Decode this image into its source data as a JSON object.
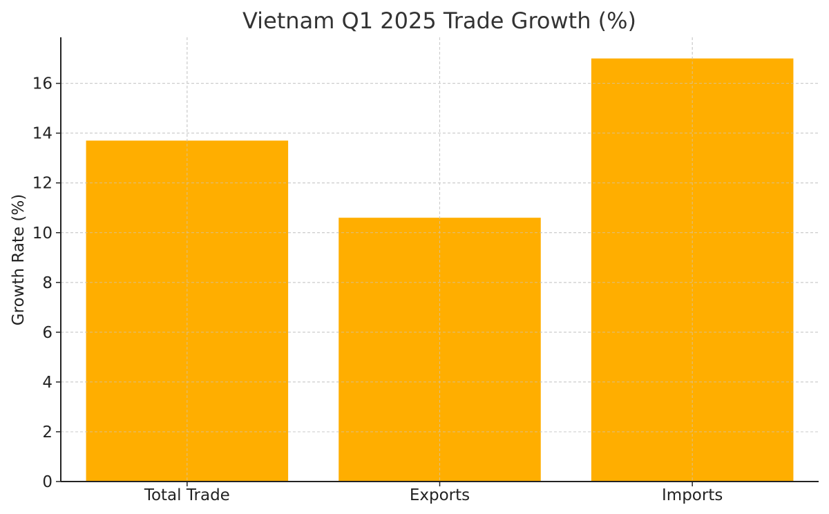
{
  "chart_data": {
    "type": "bar",
    "title": "Vietnam Q1 2025 Trade Growth (%)",
    "xlabel": "",
    "ylabel": "Growth Rate (%)",
    "categories": [
      "Total Trade",
      "Exports",
      "Imports"
    ],
    "values": [
      13.7,
      10.6,
      17.0
    ],
    "ylim": [
      0,
      17.85
    ],
    "yticks": [
      0,
      2,
      4,
      6,
      8,
      10,
      12,
      14,
      16
    ],
    "ytick_labels": [
      "0",
      "2",
      "4",
      "6",
      "8",
      "10",
      "12",
      "14",
      "16"
    ],
    "grid": true,
    "legend": "none",
    "bar_color": "#FFAE00",
    "grid_color": "#c8c8c8",
    "axis_color": "#222222"
  }
}
